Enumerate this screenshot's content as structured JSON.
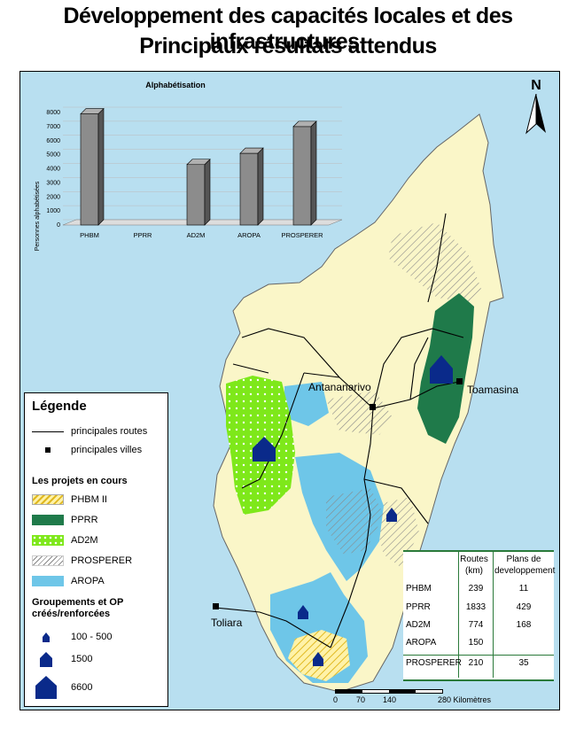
{
  "title_line1": "Développement des capacités locales et des infrastructures:",
  "title_line2": "Principaux résultats attendus",
  "north_label": "N",
  "chart_data": {
    "type": "bar",
    "title": "Alphabétisation",
    "ylabel": "Personnes alphabétisées",
    "xlabel": "",
    "categories": [
      "PHBM",
      "PPRR",
      "AD2M",
      "AROPA",
      "PROSPERER"
    ],
    "values": [
      7900,
      0,
      4300,
      5100,
      7000
    ],
    "ylim": [
      0,
      8000
    ],
    "yticks": [
      0,
      1000,
      2000,
      3000,
      4000,
      5000,
      6000,
      7000,
      8000
    ],
    "grid": true
  },
  "cities": [
    {
      "name": "Antananarivo"
    },
    {
      "name": "Toamasina"
    },
    {
      "name": "Toliara"
    }
  ],
  "legend": {
    "title": "Légende",
    "roads": "principales routes",
    "cities": "principales villes",
    "projects_title": "Les projets en cours",
    "projects": [
      "PHBM II",
      "PPRR",
      "AD2M",
      "PROSPERER",
      "AROPA"
    ],
    "groups_title_1": "Groupements et OP",
    "groups_title_2": "créés/renforcées",
    "groups": [
      "100 - 500",
      "1500",
      "6600"
    ]
  },
  "table": {
    "headers": [
      "Routes (km)",
      "Plans de developpement"
    ],
    "header_routes_1": "Routes",
    "header_routes_2": "(km)",
    "header_plans_1": "Plans de",
    "header_plans_2": "developpement",
    "rows": [
      {
        "name": "PHBM",
        "routes": "239",
        "plans": "11"
      },
      {
        "name": "PPRR",
        "routes": "1833",
        "plans": "429"
      },
      {
        "name": "AD2M",
        "routes": "774",
        "plans": "168"
      },
      {
        "name": "AROPA",
        "routes": "150",
        "plans": ""
      },
      {
        "name": "PROSPERER",
        "routes": "210",
        "plans": "35"
      }
    ]
  },
  "scale": {
    "ticks": [
      "0",
      "70",
      "140",
      "280 Kilomètres"
    ]
  },
  "colors": {
    "sea": "#b8dff0",
    "land": "#faf6c8",
    "pprr": "#1f7a4a",
    "ad2m": "#7ee81a",
    "aropa": "#6ec6e8",
    "phbm": "#f0d040",
    "marker": "#0a2a8a"
  }
}
